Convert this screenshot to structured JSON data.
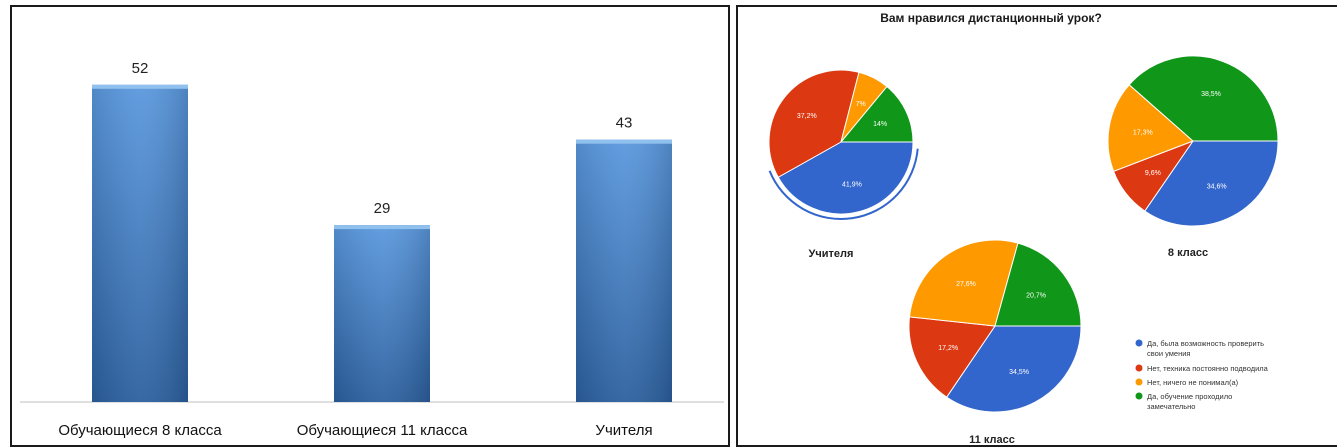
{
  "chart_data": [
    {
      "type": "bar",
      "categories": [
        "Обучающиеся 8 класса",
        "Обучающиеся 11 класса",
        "Учителя"
      ],
      "values": [
        52,
        29,
        43
      ],
      "ylim": [
        0,
        60
      ],
      "grid": false,
      "colors": {
        "bar_top": "#5a98de",
        "bar_bottom": "#2b5f9e",
        "bar_cap": "#8fc0ee",
        "baseline": "#bfbfbf"
      }
    },
    {
      "type": "pie",
      "title": "Вам нравился дистанционный урок?",
      "legend": {
        "placement": "bottom-right",
        "entries": [
          "Да, была возможность проверить свои умения",
          "Нет, техника постоянно подводила",
          "Нет, ничего не понимал(а)",
          "Да, обучение проходило замечательно"
        ],
        "colors": [
          "#3366cc",
          "#dc3912",
          "#ff9900",
          "#109618"
        ]
      },
      "pies": [
        {
          "name": "Учителя",
          "slices": [
            "41,9%",
            "37,2%",
            "7%",
            "14%"
          ],
          "values": [
            41.9,
            37.2,
            7.0,
            14.0
          ]
        },
        {
          "name": "8 класс",
          "slices": [
            "34,6%",
            "9,6%",
            "17,3%",
            "38,5%"
          ],
          "values": [
            34.6,
            9.6,
            17.3,
            38.5
          ]
        },
        {
          "name": "11 класс",
          "slices": [
            "34,5%",
            "17,2%",
            "27,6%",
            "20,7%"
          ],
          "values": [
            34.5,
            17.2,
            27.6,
            20.7
          ]
        }
      ]
    }
  ]
}
